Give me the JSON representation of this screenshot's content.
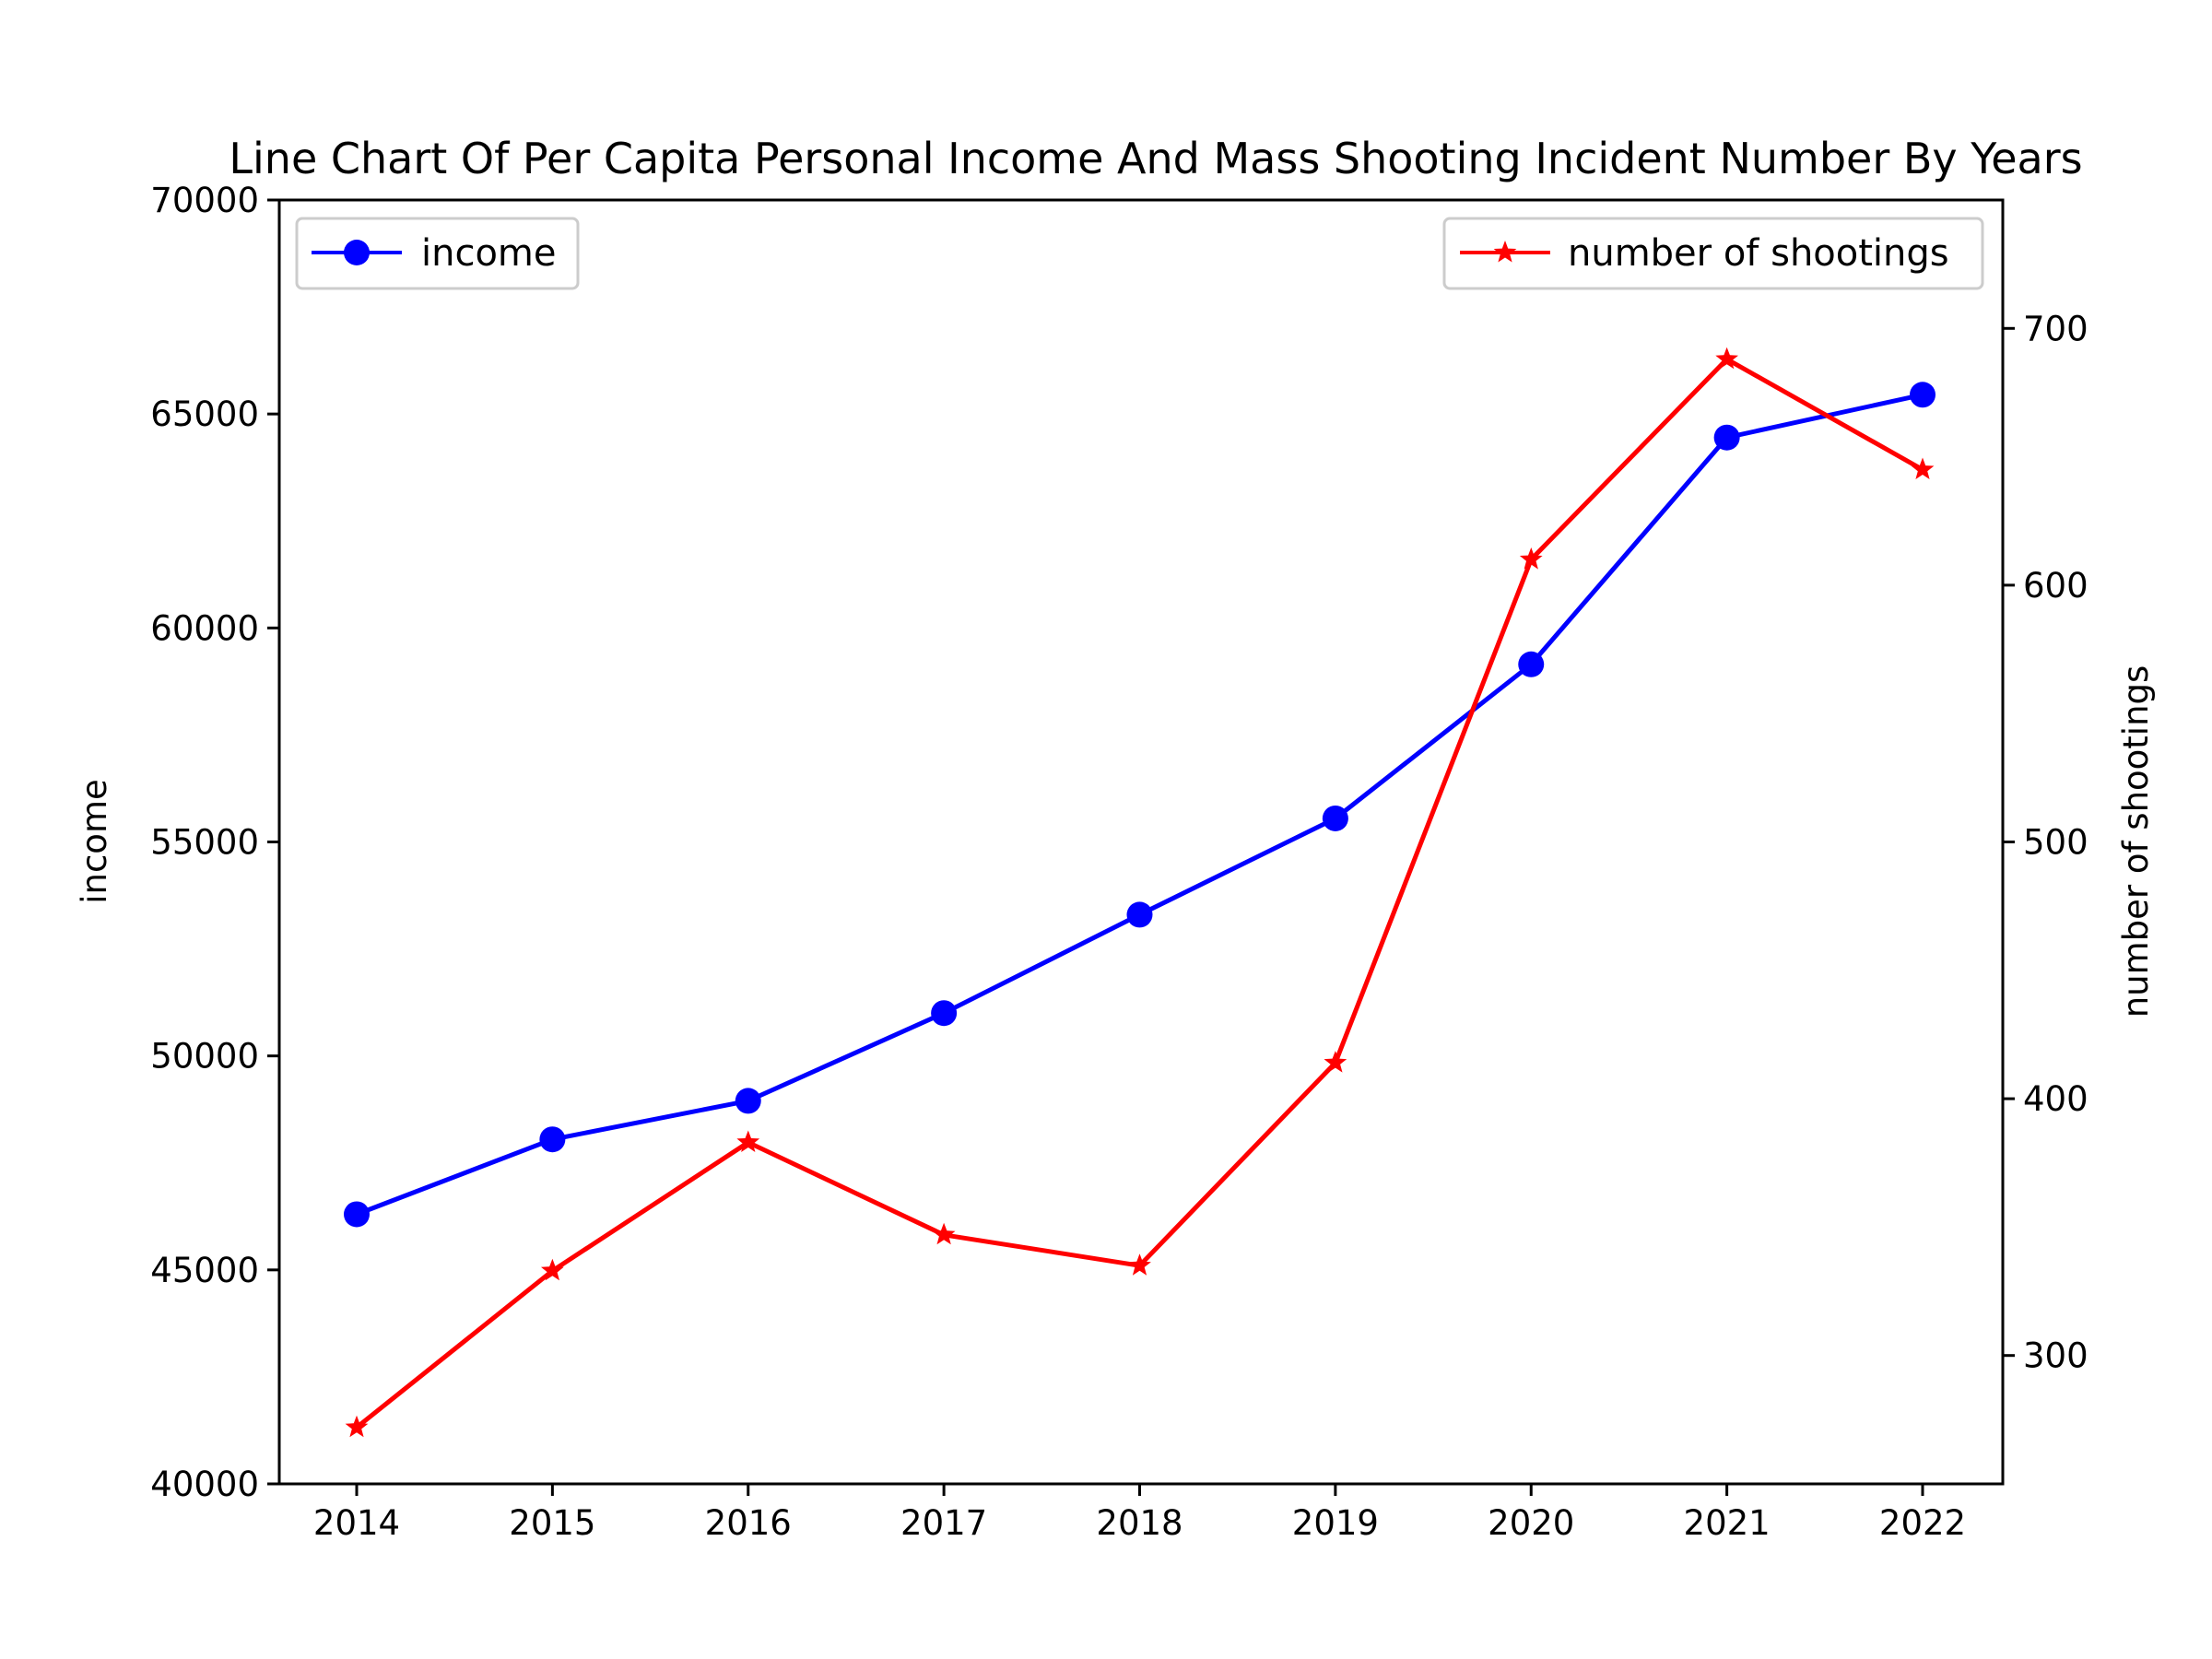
{
  "chart_data": {
    "type": "line",
    "title": "Line Chart Of Per Capita Personal Income And Mass Shooting Incident Number By Years",
    "xlabel": "",
    "categories": [
      "2014",
      "2015",
      "2016",
      "2017",
      "2018",
      "2019",
      "2020",
      "2021",
      "2022"
    ],
    "axes": {
      "left": {
        "label": "income",
        "ylim": [
          40000,
          70000
        ],
        "ticks": [
          "40000",
          "45000",
          "50000",
          "55000",
          "60000",
          "65000",
          "70000"
        ]
      },
      "right": {
        "label": "number of shootings",
        "ylim": [
          250,
          750
        ],
        "ticks": [
          "300",
          "400",
          "500",
          "600",
          "700"
        ]
      }
    },
    "series": [
      {
        "name": "income",
        "axis": "left",
        "color": "#0000ff",
        "marker": "circle",
        "values": [
          46300,
          48050,
          48950,
          51000,
          53300,
          55550,
          59150,
          64450,
          65450
        ]
      },
      {
        "name": "number of shootings",
        "axis": "right",
        "color": "#ff0000",
        "marker": "star",
        "values": [
          272,
          333,
          383,
          347,
          335,
          414,
          610,
          688,
          645
        ]
      }
    ],
    "legends": {
      "income": "top-left",
      "number of shootings": "top-right"
    },
    "grid": false
  }
}
